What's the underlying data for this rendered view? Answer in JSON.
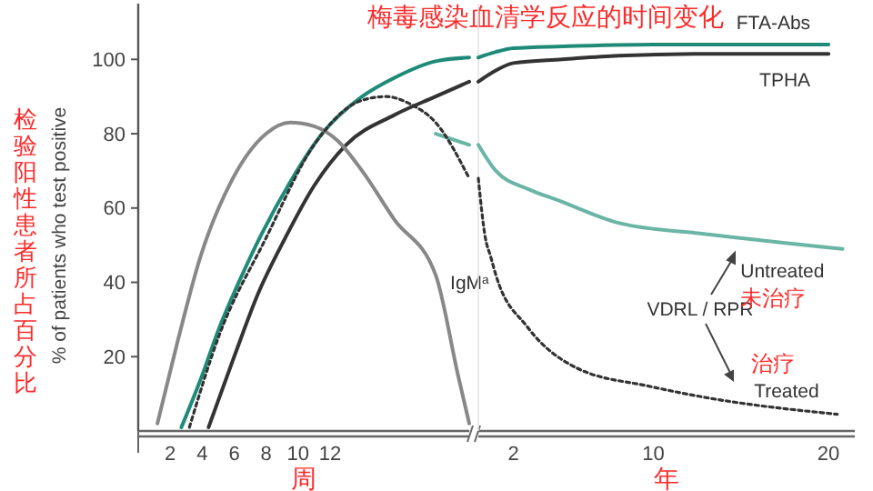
{
  "chart_data": [
    {
      "type": "line",
      "title": "梅毒感染血清学反应的时间变化",
      "ylabel": "% of patients who test positive",
      "xlabel": "周",
      "xlim": [
        0,
        20.7
      ],
      "ylim": [
        0,
        115
      ],
      "xticks": [
        2,
        4,
        6,
        8,
        10,
        12
      ],
      "yticks": [
        20,
        40,
        60,
        80,
        100
      ],
      "marker": "none",
      "series": [
        {
          "color": "#1f8a78",
          "x": [
            2.7,
            4,
            5,
            6.5,
            7.6,
            9.5,
            11.5,
            14,
            16,
            18.6,
            20.7
          ],
          "values": [
            1,
            15,
            27,
            42,
            52,
            67,
            80,
            90,
            95,
            99.5,
            100.5
          ]
        },
        {
          "color": "#333333",
          "x": [
            4.4,
            6,
            7.5,
            9.2,
            11,
            13,
            16,
            18.6,
            20.7
          ],
          "values": [
            1,
            20,
            37,
            52,
            66,
            77,
            85,
            90,
            94
          ]
        },
        {
          "name": "IgM$^{a}$",
          "color": "#888888",
          "x": [
            1.2,
            2.4,
            3.9,
            5.8,
            8,
            9.5,
            11,
            12.5,
            14,
            16,
            18.6,
            20,
            20.7
          ],
          "values": [
            2,
            23,
            47,
            67,
            80,
            83,
            82,
            78,
            70,
            57,
            42,
            15,
            2
          ]
        },
        {
          "color": "#6ab5a5",
          "x": [
            18.6,
            20.7
          ],
          "values": [
            80,
            77
          ]
        },
        {
          "color": "#333333",
          "line_style": "dotted",
          "x": [
            3.2,
            5,
            8,
            11,
            14,
            15.5,
            17,
            18.6,
            20.7
          ],
          "values": [
            1,
            25,
            52,
            77,
            89,
            90,
            88,
            83,
            68
          ]
        }
      ],
      "annotations": [
        "检验阳性患者所占百分比"
      ]
    },
    {
      "type": "line",
      "xlabel": "年",
      "xlim": [
        0,
        21.5
      ],
      "ylim": [
        0,
        115
      ],
      "xticks": [
        2,
        10,
        20
      ],
      "yticks": [
        20,
        40,
        60,
        80,
        100
      ],
      "tick_labels": "x",
      "marker": "none",
      "series": [
        {
          "name": "FTA-Abs",
          "color": "#1f8a78",
          "x": [
            0,
            1,
            2,
            4.8,
            10,
            15,
            20
          ],
          "values": [
            100.5,
            102,
            103,
            103.5,
            104,
            104,
            104
          ]
        },
        {
          "name": "TPHA",
          "color": "#333333",
          "x": [
            0,
            1,
            2,
            4.8,
            8,
            13.5,
            20
          ],
          "values": [
            94,
            97,
            99,
            100,
            101,
            101.5,
            101.5
          ]
        },
        {
          "name": "Untreated",
          "color": "#6ab5a5",
          "x": [
            0,
            1,
            2.9,
            4.6,
            8,
            13,
            20.8
          ],
          "values": [
            77,
            70,
            65,
            62,
            56,
            53,
            49
          ]
        },
        {
          "name": "Treated",
          "color": "#333333",
          "line_style": "dotted",
          "x": [
            0,
            0.4,
            0.7,
            1,
            2.8,
            5.6,
            9.8,
            13,
            20.5
          ],
          "values": [
            68,
            52,
            47,
            42,
            28,
            17,
            12,
            9,
            4.5
          ]
        }
      ],
      "annotations": [
        "VDRL / RPR",
        "未治疗",
        "治疗"
      ]
    }
  ]
}
